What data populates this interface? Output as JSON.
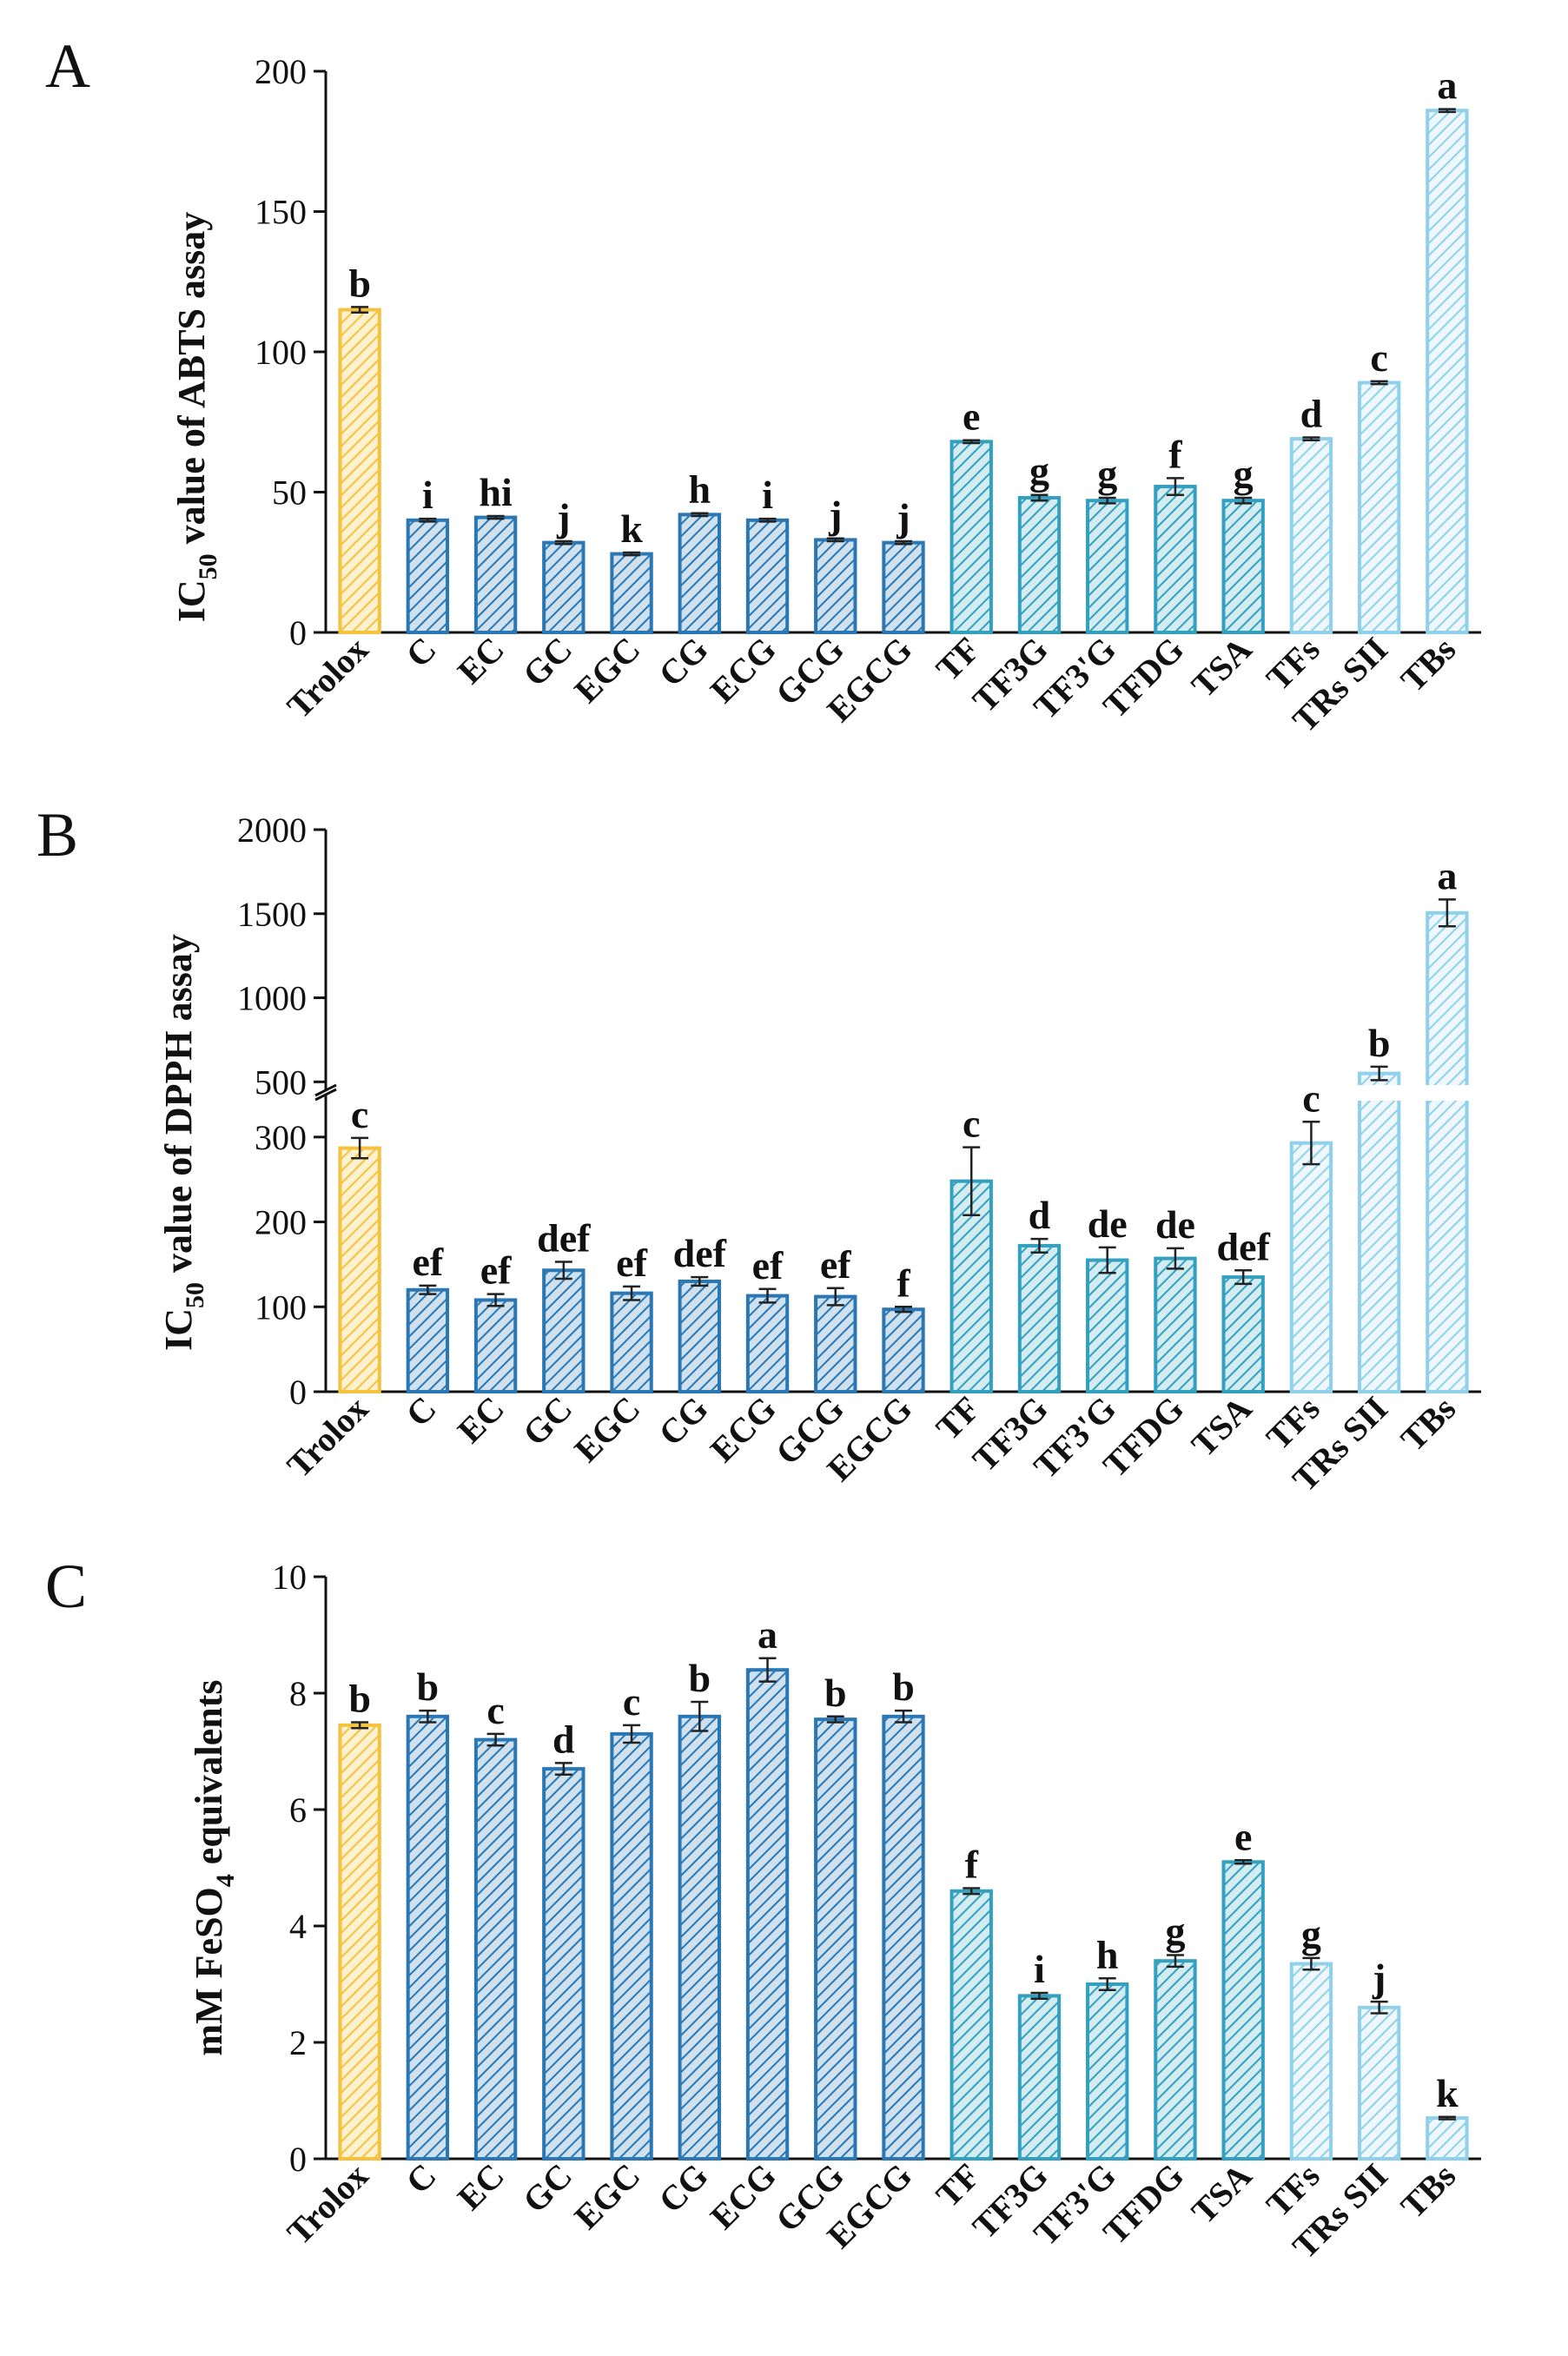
{
  "chart_data": [
    {
      "type": "bar",
      "panel_label": "A",
      "ylabel_main": "IC",
      "ylabel_sub": "50",
      "ylabel_rest": " value of ABTS assay",
      "ylim": [
        0,
        200
      ],
      "yticks": [
        "0",
        "50",
        "100",
        "150",
        "200"
      ],
      "ytick_values": [
        0,
        50,
        100,
        150,
        200
      ],
      "categories": [
        "Trolox",
        "C",
        "EC",
        "GC",
        "EGC",
        "CG",
        "ECG",
        "GCG",
        "EGCG",
        "TF",
        "TF3G",
        "TF3'G",
        "TFDG",
        "TSA",
        "TFs",
        "TRs SII",
        "TBs"
      ],
      "values": [
        115,
        40,
        41,
        32,
        28,
        42,
        40,
        33,
        32,
        68,
        48,
        47,
        52,
        47,
        69,
        89,
        186
      ],
      "errors": [
        1,
        0.5,
        0.5,
        0.5,
        0.5,
        0.5,
        0.5,
        0.5,
        0.5,
        0.5,
        1,
        1,
        3,
        1,
        0.5,
        0.5,
        0.5
      ],
      "letters": [
        "b",
        "i",
        "hi",
        "j",
        "k",
        "h",
        "i",
        "j",
        "j",
        "e",
        "g",
        "g",
        "f",
        "g",
        "d",
        "c",
        "a"
      ]
    },
    {
      "type": "bar",
      "panel_label": "B",
      "ylabel_main": "IC",
      "ylabel_sub": "50",
      "ylabel_rest": " value of DPPH assay",
      "ylim": [
        0,
        2000
      ],
      "axis_break": [
        350,
        450
      ],
      "yticks": [
        "0",
        "100",
        "200",
        "300",
        "500",
        "1000",
        "1500",
        "2000"
      ],
      "ytick_values": [
        0,
        100,
        200,
        300,
        500,
        1000,
        1500,
        2000
      ],
      "categories": [
        "Trolox",
        "C",
        "EC",
        "GC",
        "EGC",
        "CG",
        "ECG",
        "GCG",
        "EGCG",
        "TF",
        "TF3G",
        "TF3'G",
        "TFDG",
        "TSA",
        "TFs",
        "TRs SII",
        "TBs"
      ],
      "values": [
        287,
        120,
        108,
        143,
        116,
        130,
        113,
        112,
        97,
        248,
        172,
        155,
        157,
        135,
        293,
        550,
        1505
      ],
      "errors": [
        12,
        5,
        7,
        10,
        8,
        5,
        8,
        10,
        3,
        40,
        8,
        15,
        12,
        8,
        25,
        40,
        80
      ],
      "letters": [
        "c",
        "ef",
        "ef",
        "def",
        "ef",
        "def",
        "ef",
        "ef",
        "f",
        "c",
        "d",
        "de",
        "de",
        "def",
        "c",
        "b",
        "a"
      ]
    },
    {
      "type": "bar",
      "panel_label": "C",
      "ylabel_main": "mM FeSO",
      "ylabel_sub": "4",
      "ylabel_rest": " equivalents",
      "ylim": [
        0,
        10
      ],
      "yticks": [
        "0",
        "2",
        "4",
        "6",
        "8",
        "10"
      ],
      "ytick_values": [
        0,
        2,
        4,
        6,
        8,
        10
      ],
      "categories": [
        "Trolox",
        "C",
        "EC",
        "GC",
        "EGC",
        "CG",
        "ECG",
        "GCG",
        "EGCG",
        "TF",
        "TF3G",
        "TF3'G",
        "TFDG",
        "TSA",
        "TFs",
        "TRs SII",
        "TBs"
      ],
      "values": [
        7.45,
        7.6,
        7.2,
        6.7,
        7.3,
        7.6,
        8.4,
        7.55,
        7.6,
        4.6,
        2.8,
        3.0,
        3.4,
        5.1,
        3.35,
        2.6,
        0.7
      ],
      "errors": [
        0.05,
        0.1,
        0.1,
        0.1,
        0.15,
        0.25,
        0.2,
        0.05,
        0.1,
        0.05,
        0.05,
        0.1,
        0.1,
        0.03,
        0.1,
        0.1,
        0.02
      ],
      "letters": [
        "b",
        "b",
        "c",
        "d",
        "c",
        "b",
        "a",
        "b",
        "b",
        "f",
        "i",
        "h",
        "g",
        "e",
        "g",
        "j",
        "k"
      ]
    }
  ],
  "colors": {
    "trolox": "#f5c23e",
    "catechins": "#2a77b3",
    "theaflavins": "#34a0bf",
    "polymers": "#8fd0ea"
  }
}
